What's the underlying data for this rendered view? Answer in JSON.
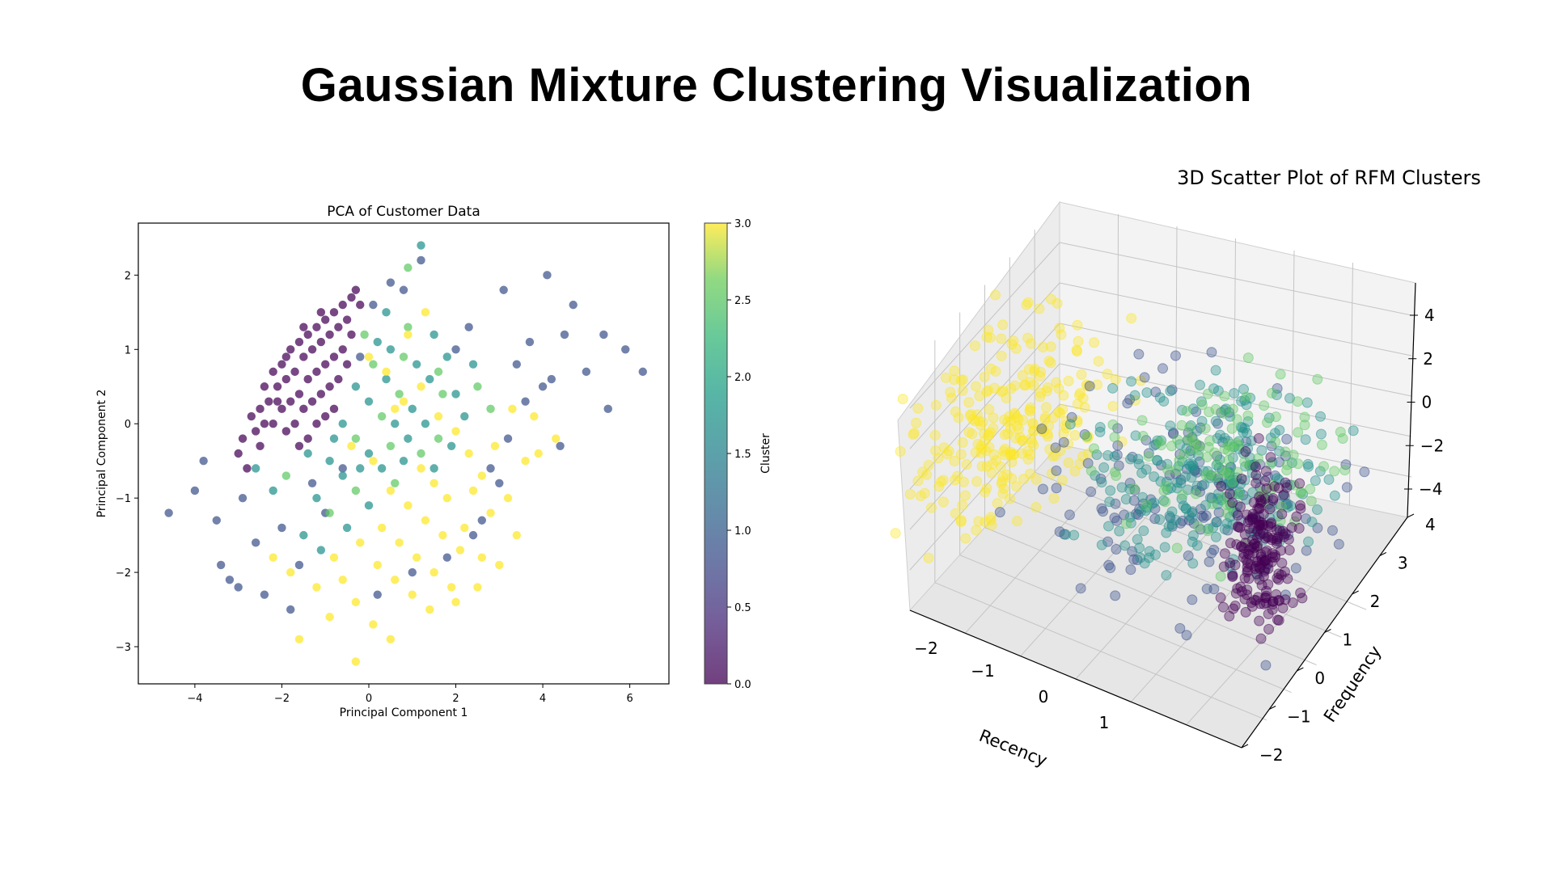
{
  "page": {
    "title": "Gaussian Mixture Clustering Visualization"
  },
  "chart_data": [
    {
      "type": "scatter",
      "title": "PCA of Customer Data",
      "xlabel": "Principal Component 1",
      "ylabel": "Principal Component 2",
      "xlim": [
        -5.3,
        6.9
      ],
      "ylim": [
        -3.5,
        2.7
      ],
      "xticks": [
        "−4",
        "−2",
        "0",
        "2",
        "4",
        "6"
      ],
      "yticks": [
        "−3",
        "−2",
        "−1",
        "0",
        "1",
        "2"
      ],
      "colorbar": {
        "label": "Cluster",
        "range": [
          0.0,
          3.0
        ],
        "ticks": [
          "0.0",
          "0.5",
          "1.0",
          "1.5",
          "2.0",
          "2.5",
          "3.0"
        ]
      },
      "grid": false,
      "colors": {
        "0": "#440154",
        "1": "#3b528b",
        "2": "#21918c",
        "2b": "#5ec962",
        "3": "#fde725"
      },
      "series": [
        {
          "values": [
            [
              -2.9,
              -0.2
            ],
            [
              -2.7,
              0.1
            ],
            [
              -2.5,
              0.2
            ],
            [
              -2.4,
              0.5
            ],
            [
              -2.2,
              0.7
            ],
            [
              -2.0,
              0.8
            ],
            [
              -1.8,
              1.0
            ],
            [
              -1.6,
              1.1
            ],
            [
              -1.4,
              1.2
            ],
            [
              -1.2,
              1.3
            ],
            [
              -1.0,
              1.4
            ],
            [
              -0.8,
              1.5
            ],
            [
              -0.6,
              1.6
            ],
            [
              -0.4,
              1.7
            ],
            [
              -2.6,
              -0.1
            ],
            [
              -2.3,
              0.3
            ],
            [
              -2.1,
              0.5
            ],
            [
              -1.9,
              0.6
            ],
            [
              -1.7,
              0.7
            ],
            [
              -1.5,
              0.9
            ],
            [
              -1.3,
              1.0
            ],
            [
              -1.1,
              1.1
            ],
            [
              -0.9,
              1.2
            ],
            [
              -0.7,
              1.3
            ],
            [
              -0.5,
              1.4
            ],
            [
              -2.2,
              0.0
            ],
            [
              -2.0,
              0.2
            ],
            [
              -1.8,
              0.3
            ],
            [
              -1.6,
              0.4
            ],
            [
              -1.4,
              0.6
            ],
            [
              -1.2,
              0.7
            ],
            [
              -1.0,
              0.8
            ],
            [
              -0.8,
              0.9
            ],
            [
              -0.6,
              1.0
            ],
            [
              -0.4,
              1.2
            ],
            [
              -1.9,
              -0.1
            ],
            [
              -1.7,
              0.0
            ],
            [
              -1.5,
              0.2
            ],
            [
              -1.3,
              0.3
            ],
            [
              -1.1,
              0.4
            ],
            [
              -0.9,
              0.5
            ],
            [
              -0.7,
              0.6
            ],
            [
              -0.5,
              0.8
            ],
            [
              -1.6,
              -0.3
            ],
            [
              -1.4,
              -0.2
            ],
            [
              -1.2,
              0.0
            ],
            [
              -1.0,
              0.1
            ],
            [
              -0.8,
              0.2
            ],
            [
              -3.0,
              -0.4
            ],
            [
              -2.8,
              -0.6
            ],
            [
              -2.5,
              -0.3
            ],
            [
              -0.3,
              1.8
            ],
            [
              -0.2,
              1.6
            ],
            [
              -2.4,
              0.0
            ],
            [
              -2.1,
              0.3
            ],
            [
              -1.9,
              0.9
            ],
            [
              -1.5,
              1.3
            ],
            [
              -1.1,
              1.5
            ]
          ]
        },
        {
          "values": [
            [
              -4.6,
              -1.2
            ],
            [
              -4.0,
              -0.9
            ],
            [
              -3.8,
              -0.5
            ],
            [
              -3.5,
              -1.3
            ],
            [
              -3.4,
              -1.9
            ],
            [
              -3.2,
              -2.1
            ],
            [
              -3.0,
              -2.2
            ],
            [
              -2.9,
              -1.0
            ],
            [
              -2.6,
              -1.6
            ],
            [
              -2.4,
              -2.3
            ],
            [
              -2.0,
              -1.4
            ],
            [
              -1.8,
              -2.5
            ],
            [
              -1.6,
              -1.9
            ],
            [
              -1.3,
              -0.8
            ],
            [
              -1.0,
              -1.2
            ],
            [
              -0.6,
              -0.6
            ],
            [
              -0.2,
              0.9
            ],
            [
              0.1,
              1.6
            ],
            [
              0.5,
              1.9
            ],
            [
              0.8,
              1.8
            ],
            [
              1.2,
              2.2
            ],
            [
              2.0,
              1.0
            ],
            [
              2.3,
              1.3
            ],
            [
              3.1,
              1.8
            ],
            [
              3.4,
              0.8
            ],
            [
              3.7,
              1.1
            ],
            [
              4.1,
              2.0
            ],
            [
              4.2,
              0.6
            ],
            [
              4.5,
              1.2
            ],
            [
              4.7,
              1.6
            ],
            [
              5.0,
              0.7
            ],
            [
              5.4,
              1.2
            ],
            [
              5.5,
              0.2
            ],
            [
              5.9,
              1.0
            ],
            [
              6.3,
              0.7
            ],
            [
              4.0,
              0.5
            ],
            [
              3.6,
              0.3
            ],
            [
              3.2,
              -0.2
            ],
            [
              2.8,
              -0.6
            ],
            [
              4.4,
              -0.3
            ],
            [
              2.4,
              -1.5
            ],
            [
              1.8,
              -1.8
            ],
            [
              1.0,
              -2.0
            ],
            [
              0.2,
              -2.3
            ],
            [
              2.6,
              -1.3
            ],
            [
              3.0,
              -0.8
            ]
          ]
        },
        {
          "values": [
            [
              -0.1,
              1.2
            ],
            [
              0.2,
              1.1
            ],
            [
              0.5,
              1.0
            ],
            [
              0.8,
              0.9
            ],
            [
              1.1,
              0.8
            ],
            [
              1.4,
              0.6
            ],
            [
              1.7,
              0.4
            ],
            [
              -0.3,
              0.5
            ],
            [
              0.0,
              0.3
            ],
            [
              0.3,
              0.1
            ],
            [
              0.6,
              0.0
            ],
            [
              0.9,
              -0.2
            ],
            [
              1.2,
              -0.4
            ],
            [
              1.5,
              -0.6
            ],
            [
              -0.6,
              0.0
            ],
            [
              -0.3,
              -0.2
            ],
            [
              0.0,
              -0.4
            ],
            [
              0.3,
              -0.6
            ],
            [
              0.6,
              -0.8
            ],
            [
              -0.9,
              -0.5
            ],
            [
              -0.6,
              -0.7
            ],
            [
              -0.3,
              -0.9
            ],
            [
              0.0,
              -1.1
            ],
            [
              -1.2,
              -1.0
            ],
            [
              -0.9,
              -1.2
            ],
            [
              -0.5,
              -1.4
            ],
            [
              0.4,
              0.6
            ],
            [
              0.7,
              0.4
            ],
            [
              1.0,
              0.2
            ],
            [
              1.3,
              0.0
            ],
            [
              1.6,
              -0.2
            ],
            [
              1.9,
              -0.3
            ],
            [
              2.2,
              0.1
            ],
            [
              2.5,
              0.5
            ],
            [
              1.8,
              0.9
            ],
            [
              1.5,
              1.2
            ],
            [
              0.9,
              1.3
            ],
            [
              0.4,
              1.5
            ],
            [
              1.2,
              2.4
            ],
            [
              0.9,
              2.1
            ],
            [
              -2.6,
              -0.6
            ],
            [
              -2.2,
              -0.9
            ],
            [
              -1.9,
              -0.7
            ],
            [
              -1.5,
              -1.5
            ],
            [
              -1.1,
              -1.7
            ],
            [
              0.1,
              0.8
            ],
            [
              -0.2,
              -0.6
            ],
            [
              0.8,
              -0.5
            ],
            [
              1.6,
              0.7
            ],
            [
              2.0,
              0.4
            ],
            [
              2.4,
              0.8
            ],
            [
              2.8,
              0.2
            ],
            [
              -0.8,
              -0.2
            ],
            [
              -1.4,
              -0.4
            ],
            [
              0.5,
              -0.3
            ]
          ]
        },
        {
          "values": [
            [
              0.0,
              0.9
            ],
            [
              0.4,
              0.7
            ],
            [
              0.8,
              0.3
            ],
            [
              1.2,
              0.5
            ],
            [
              1.6,
              0.1
            ],
            [
              2.0,
              -0.1
            ],
            [
              2.3,
              -0.4
            ],
            [
              2.6,
              -0.7
            ],
            [
              -0.4,
              -0.3
            ],
            [
              0.1,
              -0.5
            ],
            [
              0.5,
              -0.9
            ],
            [
              0.9,
              -1.1
            ],
            [
              1.3,
              -1.3
            ],
            [
              1.7,
              -1.5
            ],
            [
              2.1,
              -1.7
            ],
            [
              0.3,
              -1.4
            ],
            [
              0.7,
              -1.6
            ],
            [
              1.1,
              -1.8
            ],
            [
              1.5,
              -2.0
            ],
            [
              1.9,
              -2.2
            ],
            [
              -0.2,
              -1.6
            ],
            [
              0.2,
              -1.9
            ],
            [
              0.6,
              -2.1
            ],
            [
              1.0,
              -2.3
            ],
            [
              1.4,
              -2.5
            ],
            [
              -0.6,
              -2.1
            ],
            [
              -0.3,
              -2.4
            ],
            [
              0.1,
              -2.7
            ],
            [
              0.5,
              -2.9
            ],
            [
              -0.9,
              -2.6
            ],
            [
              -1.6,
              -2.9
            ],
            [
              -0.3,
              -3.2
            ],
            [
              2.4,
              -0.9
            ],
            [
              2.8,
              -1.2
            ],
            [
              3.2,
              -1.0
            ],
            [
              3.6,
              -0.5
            ],
            [
              3.9,
              -0.4
            ],
            [
              4.3,
              -0.2
            ],
            [
              2.2,
              -1.4
            ],
            [
              2.6,
              -1.8
            ],
            [
              3.0,
              -1.9
            ],
            [
              3.4,
              -1.5
            ],
            [
              1.8,
              -1.0
            ],
            [
              1.2,
              -0.6
            ],
            [
              -1.8,
              -2.0
            ],
            [
              -2.2,
              -1.8
            ],
            [
              -1.2,
              -2.2
            ],
            [
              0.9,
              1.2
            ],
            [
              1.3,
              1.5
            ],
            [
              -0.8,
              -1.8
            ],
            [
              2.9,
              -0.3
            ],
            [
              3.3,
              0.2
            ],
            [
              3.8,
              0.1
            ],
            [
              0.6,
              0.2
            ],
            [
              1.5,
              -0.8
            ],
            [
              2.0,
              -2.4
            ],
            [
              2.5,
              -2.2
            ]
          ]
        }
      ]
    },
    {
      "type": "scatter",
      "title": "3D Scatter Plot of RFM Clusters",
      "xlabel": "Recency",
      "ylabel": "Frequency",
      "zlabel": "",
      "xticks": [
        "−2",
        "−1",
        "0",
        "1"
      ],
      "yticks": [
        "−2",
        "−1",
        "0",
        "1",
        "2",
        "3",
        "4"
      ],
      "zticks": [
        "−4",
        "−2",
        "0",
        "2",
        "4"
      ],
      "grid": true,
      "colors": {
        "0": "#440154",
        "1": "#3b528b",
        "2": "#21918c",
        "2b": "#5ec962",
        "3": "#fde725"
      }
    }
  ]
}
